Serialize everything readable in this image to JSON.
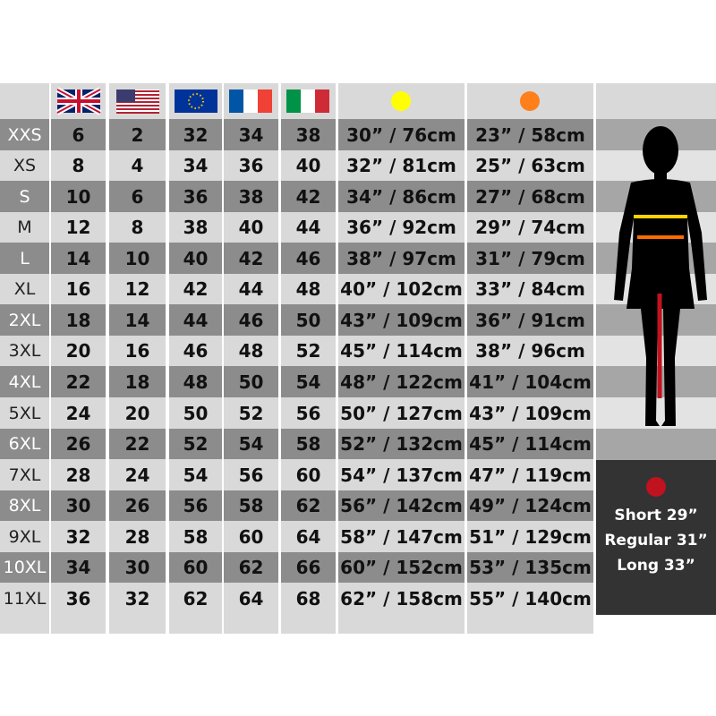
{
  "table": {
    "rows": [
      [
        "XXS",
        "6",
        "2",
        "32",
        "34",
        "38",
        "30” / 76cm",
        "23” / 58cm"
      ],
      [
        "XS",
        "8",
        "4",
        "34",
        "36",
        "40",
        "32” / 81cm",
        "25” / 63cm"
      ],
      [
        "S",
        "10",
        "6",
        "36",
        "38",
        "42",
        "34” / 86cm",
        "27” / 68cm"
      ],
      [
        "M",
        "12",
        "8",
        "38",
        "40",
        "44",
        "36” / 92cm",
        "29” / 74cm"
      ],
      [
        "L",
        "14",
        "10",
        "40",
        "42",
        "46",
        "38” / 97cm",
        "31” / 79cm"
      ],
      [
        "XL",
        "16",
        "12",
        "42",
        "44",
        "48",
        "40” / 102cm",
        "33” / 84cm"
      ],
      [
        "2XL",
        "18",
        "14",
        "44",
        "46",
        "50",
        "43” / 109cm",
        "36” / 91cm"
      ],
      [
        "3XL",
        "20",
        "16",
        "46",
        "48",
        "52",
        "45” / 114cm",
        "38” / 96cm"
      ],
      [
        "4XL",
        "22",
        "18",
        "48",
        "50",
        "54",
        "48” / 122cm",
        "41” / 104cm"
      ],
      [
        "5XL",
        "24",
        "20",
        "50",
        "52",
        "56",
        "50” / 127cm",
        "43” / 109cm"
      ],
      [
        "6XL",
        "26",
        "22",
        "52",
        "54",
        "58",
        "52” / 132cm",
        "45” / 114cm"
      ],
      [
        "7XL",
        "28",
        "24",
        "54",
        "56",
        "60",
        "54” / 137cm",
        "47” / 119cm"
      ],
      [
        "8XL",
        "30",
        "26",
        "56",
        "58",
        "62",
        "56” / 142cm",
        "49” / 124cm"
      ],
      [
        "9XL",
        "32",
        "28",
        "58",
        "60",
        "64",
        "58” / 147cm",
        "51” / 129cm"
      ],
      [
        "10XL",
        "34",
        "30",
        "60",
        "62",
        "66",
        "60” / 152cm",
        "53” / 135cm"
      ],
      [
        "11XL",
        "36",
        "32",
        "62",
        "64",
        "68",
        "62” / 158cm",
        "55” / 140cm"
      ]
    ]
  },
  "inseam": [
    "Short 29”",
    "Regular 31”",
    "Long 33”"
  ]
}
